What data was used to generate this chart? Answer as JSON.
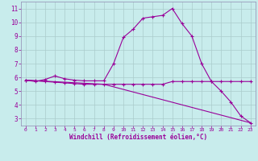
{
  "title": "",
  "xlabel": "Windchill (Refroidissement éolien,°C)",
  "background_color": "#c8ecec",
  "line_color": "#990099",
  "grid_color": "#aacccc",
  "xlim": [
    -0.5,
    23.5
  ],
  "ylim": [
    2.5,
    11.5
  ],
  "yticks": [
    3,
    4,
    5,
    6,
    7,
    8,
    9,
    10,
    11
  ],
  "xticks": [
    0,
    1,
    2,
    3,
    4,
    5,
    6,
    7,
    8,
    9,
    10,
    11,
    12,
    13,
    14,
    15,
    16,
    17,
    18,
    19,
    20,
    21,
    22,
    23
  ],
  "series1_x": [
    0,
    1,
    2,
    3,
    4,
    5,
    6,
    7,
    8,
    9,
    10,
    11,
    12,
    13,
    14,
    15,
    16,
    17,
    18,
    19,
    20,
    21,
    22,
    23
  ],
  "series1_y": [
    5.8,
    5.7,
    5.85,
    6.1,
    5.9,
    5.8,
    5.75,
    5.75,
    5.75,
    7.0,
    8.9,
    9.5,
    10.3,
    10.4,
    10.5,
    11.0,
    9.9,
    9.0,
    7.0,
    5.7,
    5.0,
    4.2,
    3.2,
    2.7
  ],
  "series2_x": [
    0,
    1,
    2,
    3,
    4,
    5,
    6,
    7,
    8,
    9,
    10,
    11,
    12,
    13,
    14,
    15,
    16,
    17,
    18,
    19,
    20,
    21,
    22,
    23
  ],
  "series2_y": [
    5.8,
    5.75,
    5.7,
    5.65,
    5.6,
    5.55,
    5.5,
    5.5,
    5.5,
    5.5,
    5.5,
    5.5,
    5.5,
    5.5,
    5.5,
    5.7,
    5.7,
    5.7,
    5.7,
    5.7,
    5.7,
    5.7,
    5.7,
    5.7
  ],
  "series3_x": [
    0,
    8,
    23
  ],
  "series3_y": [
    5.8,
    5.5,
    2.7
  ]
}
